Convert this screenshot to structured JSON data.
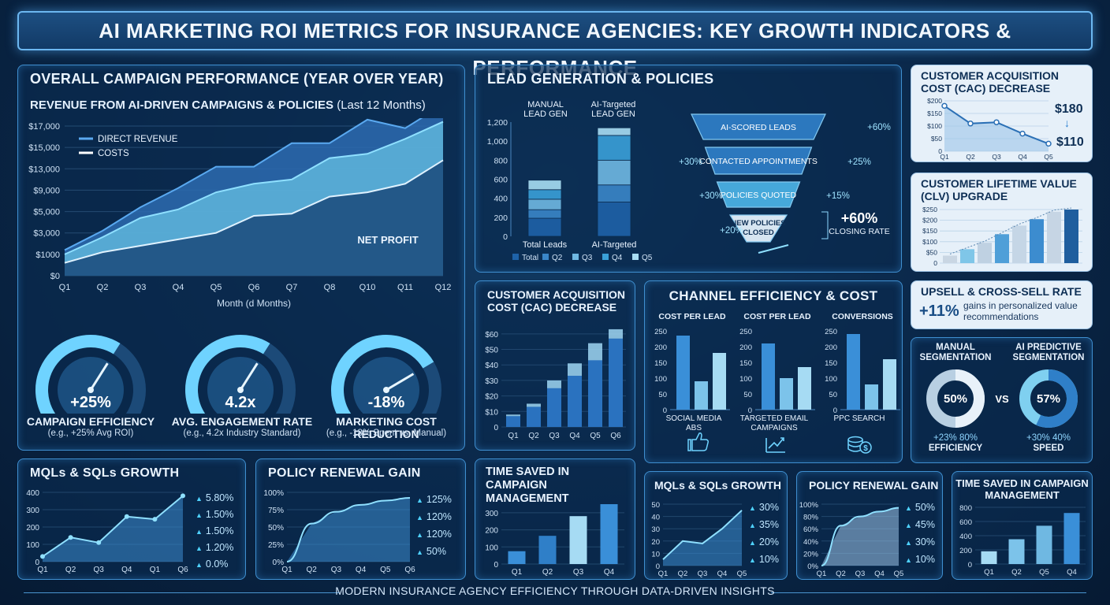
{
  "title": "AI MARKETING ROI METRICS FOR INSURANCE AGENCIES: KEY GROWTH INDICATORS & PERFORMANCE",
  "footer": "MODERN INSURANCE AGENCY EFFICIENCY THROUGH DATA-DRIVEN INSIGHTS",
  "overall": {
    "title": "OVERALL CAMPAIGN PERFORMANCE (YEAR OVER YEAR)",
    "chart_title": "REVENUE FROM AI-DRIVEN CAMPAIGNS & POLICIES",
    "chart_title_suffix": "(Last 12 Months)",
    "legend_direct": "DIRECT REVENUE",
    "legend_costs": "COSTS",
    "net_profit_label": "NET PROFIT",
    "xlabel": "Month (d Months)"
  },
  "gauges": [
    {
      "value": "+25%",
      "label": "CAMPAIGN EFFICIENCY",
      "sub": "(e.g., +25% Avg ROI)",
      "fill": 0.62
    },
    {
      "value": "4.2x",
      "label": "AVG. ENGAGEMENT RATE",
      "sub": "(e.g., 4.2x Industry Standard)",
      "fill": 0.62
    },
    {
      "value": "-18%",
      "label": "MARKETING COST REDUCTION",
      "sub": "(e.g., -18% Spent vs. Manual)",
      "fill": 0.72
    }
  ],
  "lead_gen": {
    "title": "LEAD GENERATION & POLICIES",
    "col1": "MANUAL LEAD GEN",
    "col2": "AI-Targeted LEAD GEN",
    "bar_labels": [
      "Total Leads",
      "AI-Targeted"
    ],
    "legend": [
      "Total",
      "Q2",
      "Q3",
      "Q4",
      "Q5"
    ],
    "funnel": [
      "AI-SCORED LEADS",
      "CONTACTED APPOINTMENTS",
      "POLICIES QUOTED",
      "NEW POLICIES CLOSED"
    ],
    "funnel_pcts": [
      "+60%",
      "+30%",
      "+25%",
      "+30%",
      "+15%",
      "+20%"
    ],
    "closing_value": "+60%",
    "closing_label": "CLOSING RATE"
  },
  "cac_top": {
    "title": "CUSTOMER ACQUISITION COST (CAC) DECREASE",
    "from": "$180",
    "to": "$110"
  },
  "clv": {
    "title": "CUSTOMER LIFETIME VALUE (CLV) UPGRADE"
  },
  "upsell": {
    "title": "UPSELL & CROSS-SELL RATE",
    "value": "+11%",
    "desc": "gains in personalized value recommendations"
  },
  "segmentation": {
    "left_title": "MANUAL SEGMENTATION",
    "right_title": "AI PREDICTIVE SEGMENTATION",
    "left_value": "50%",
    "right_value": "57%",
    "vs": "VS",
    "left_note": "+23% 80%",
    "left_label": "EFFICIENCY",
    "right_note": "+30% 40%",
    "right_label": "SPEED"
  },
  "cac_mid": {
    "title": "CUSTOMER ACQUISITION COST (CAC) DECREASE"
  },
  "channel": {
    "title": "CHANNEL EFFICIENCY & COST",
    "sub_titles": [
      "COST PER LEAD",
      "COST PER LEAD",
      "CONVERSIONS"
    ],
    "labels": [
      "SOCIAL MEDIA ABS",
      "TARGETED EMAIL CAMPAIGNS",
      "PPC SEARCH"
    ]
  },
  "mqls_left": {
    "title": "MQLs & SQLs GROWTH",
    "pcts": [
      "5.80%",
      "1.50%",
      "1.50%",
      "1.20%",
      "0.0%"
    ]
  },
  "renewal_left": {
    "title": "POLICY RENEWAL GAIN",
    "pcts": [
      "125%",
      "120%",
      "120%",
      "50%"
    ]
  },
  "time_left": {
    "title": "TIME SAVED IN CAMPAIGN MANAGEMENT"
  },
  "mqls_right": {
    "title": "MQLs & SQLs GROWTH",
    "pcts": [
      "30%",
      "35%",
      "20%",
      "10%"
    ]
  },
  "renewal_right": {
    "title": "POLICY RENEWAL GAIN",
    "pcts": [
      "50%",
      "45%",
      "30%",
      "10%"
    ]
  },
  "time_right": {
    "title": "TIME SAVED IN CAMPAIGN MANAGEMENT"
  },
  "icons": [
    "thumbs-up-icon",
    "line-growth-icon",
    "coins-icon"
  ],
  "colors": {
    "accent": "#4fc3f7",
    "panel_border": "#3f8fd0",
    "bar_dark": "#1e62a8",
    "bar_light": "#7fd0f0"
  },
  "chart_data": [
    {
      "type": "area",
      "title": "REVENUE FROM AI-DRIVEN CAMPAIGNS & POLICIES (Last 12 Months)",
      "xlabel": "Month (d Months)",
      "categories": [
        "Q1",
        "Q2",
        "Q3",
        "Q4",
        "Q5",
        "Q6",
        "Q7",
        "Q8",
        "Q10",
        "Q11",
        "Q12"
      ],
      "ytick_labels": [
        "$0",
        "$1000",
        "$3,000",
        "$5,000",
        "$9,000",
        "$13,000",
        "$15,000",
        "$17,000"
      ],
      "series": [
        {
          "name": "DIRECT REVENUE",
          "values": [
            1.2,
            2.1,
            3.2,
            4.1,
            5.1,
            5.1,
            6.2,
            6.2,
            7.3,
            6.9,
            8.0
          ]
        },
        {
          "name": "COSTS",
          "values": [
            1.0,
            1.8,
            2.7,
            3.1,
            3.9,
            4.3,
            4.5,
            5.5,
            5.7,
            6.4,
            7.2
          ]
        },
        {
          "name": "NET PROFIT",
          "values": [
            0.6,
            1.1,
            1.4,
            1.7,
            2.0,
            2.8,
            2.9,
            3.7,
            3.9,
            4.3,
            5.4
          ]
        }
      ],
      "y_unit_note": "positions on printed tick scale (index units)"
    },
    {
      "type": "bar",
      "title": "LEAD GENERATION",
      "categories": [
        "Total Leads",
        "AI-Targeted"
      ],
      "ylim": [
        0,
        1200
      ],
      "yticks": [
        0,
        200,
        400,
        600,
        800,
        1000,
        1200
      ],
      "series": [
        {
          "name": "Total",
          "values": [
            190,
            360
          ]
        },
        {
          "name": "Q2",
          "values": [
            90,
            180
          ]
        },
        {
          "name": "Q3",
          "values": [
            110,
            260
          ]
        },
        {
          "name": "Q4",
          "values": [
            100,
            260
          ]
        },
        {
          "name": "Q5",
          "values": [
            100,
            80
          ]
        }
      ]
    },
    {
      "type": "line",
      "title": "CUSTOMER ACQUISITION COST (CAC) DECREASE",
      "categories": [
        "Q1",
        "Q2",
        "Q3",
        "Q4",
        "Q5"
      ],
      "values": [
        180,
        110,
        115,
        70,
        30
      ],
      "ylim": [
        0,
        200
      ],
      "yticks": [
        0,
        50,
        100,
        150,
        200
      ],
      "ytick_labels": [
        "0",
        "$50",
        "$100",
        "$150",
        "$200"
      ]
    },
    {
      "type": "bar",
      "title": "CUSTOMER LIFETIME VALUE (CLV) UPGRADE",
      "categories": [
        "1",
        "2",
        "3",
        "4",
        "5",
        "6",
        "7",
        "8"
      ],
      "values": [
        35,
        65,
        95,
        135,
        175,
        205,
        240,
        250
      ],
      "ylim": [
        0,
        250
      ],
      "yticks": [
        0,
        50,
        100,
        150,
        200,
        250
      ],
      "ytick_labels": [
        "0",
        "$50",
        "$100",
        "$150",
        "$200",
        "$250"
      ]
    },
    {
      "type": "pie",
      "title": "SEGMENTATION",
      "series": [
        {
          "name": "MANUAL SEGMENTATION",
          "value": 50
        },
        {
          "name": "AI PREDICTIVE SEGMENTATION",
          "value": 57
        }
      ]
    },
    {
      "type": "bar",
      "title": "CUSTOMER ACQUISITION COST (CAC) DECREASE",
      "categories": [
        "Q1",
        "Q2",
        "Q3",
        "Q4",
        "Q5",
        "Q6"
      ],
      "series": [
        {
          "name": "dark",
          "values": [
            7,
            13,
            25,
            33,
            43,
            57
          ]
        },
        {
          "name": "light",
          "values": [
            8,
            15,
            30,
            41,
            54,
            63
          ]
        }
      ],
      "ylim": [
        0,
        65
      ],
      "yticks": [
        0,
        10,
        20,
        30,
        40,
        50,
        60
      ],
      "ytick_labels": [
        "0",
        "$10",
        "$20",
        "$30",
        "$40",
        "$50",
        "$60"
      ]
    },
    {
      "type": "bar",
      "title": "CHANNEL EFFICIENCY & COST",
      "groups": [
        {
          "name": "SOCIAL MEDIA ABS",
          "values": [
            235,
            90,
            180
          ]
        },
        {
          "name": "TARGETED EMAIL CAMPAIGNS",
          "values": [
            210,
            100,
            135
          ]
        },
        {
          "name": "PPC SEARCH",
          "values": [
            240,
            80,
            160
          ]
        }
      ],
      "ylim": [
        0,
        250
      ],
      "yticks": [
        0,
        50,
        100,
        150,
        200,
        250
      ]
    },
    {
      "type": "line",
      "title": "MQLs & SQLs GROWTH",
      "categories": [
        "Q1",
        "Q2",
        "Q3",
        "Q4",
        "Q1",
        "Q6"
      ],
      "values": [
        30,
        140,
        110,
        260,
        245,
        380
      ],
      "ylim": [
        0,
        400
      ],
      "yticks": [
        0,
        100,
        200,
        300,
        400
      ]
    },
    {
      "type": "area",
      "title": "POLICY RENEWAL GAIN",
      "categories": [
        "Q1",
        "Q2",
        "Q3",
        "Q4",
        "Q5",
        "Q6"
      ],
      "values": [
        0,
        55,
        72,
        82,
        88,
        92
      ],
      "ylim": [
        0,
        100
      ],
      "yticks": [
        0,
        25,
        50,
        75,
        100
      ],
      "ytick_labels": [
        "0%",
        "25%",
        "50%",
        "75%",
        "100%"
      ]
    },
    {
      "type": "bar",
      "title": "TIME SAVED IN CAMPAIGN MANAGEMENT",
      "categories": [
        "Q1",
        "Q2",
        "Q3",
        "Q4"
      ],
      "values": [
        75,
        165,
        280,
        350
      ],
      "ylim": [
        0,
        350
      ],
      "yticks": [
        0,
        100,
        200,
        300
      ]
    },
    {
      "type": "line",
      "title": "MQLs & SQLs GROWTH",
      "categories": [
        "Q1",
        "Q2",
        "Q3",
        "Q4",
        "Q5"
      ],
      "values": [
        5,
        20,
        18,
        30,
        45
      ],
      "ylim": [
        0,
        50
      ],
      "yticks": [
        0,
        10,
        20,
        30,
        40,
        50
      ]
    },
    {
      "type": "area",
      "title": "POLICY RENEWAL GAIN",
      "categories": [
        "Q1",
        "Q2",
        "Q3",
        "Q4",
        "Q5"
      ],
      "values": [
        0,
        65,
        80,
        88,
        94
      ],
      "ylim": [
        0,
        100
      ],
      "yticks": [
        0,
        20,
        40,
        60,
        80,
        100
      ],
      "ytick_labels": [
        "0%",
        "20%",
        "40%",
        "60%",
        "80%",
        "100%"
      ]
    },
    {
      "type": "bar",
      "title": "TIME SAVED IN CAMPAIGN MANAGEMENT",
      "categories": [
        "Q1",
        "Q2",
        "Q5",
        "Q4"
      ],
      "values": [
        180,
        350,
        540,
        720
      ],
      "ylim": [
        0,
        800
      ],
      "yticks": [
        0,
        200,
        400,
        600,
        800
      ]
    }
  ]
}
